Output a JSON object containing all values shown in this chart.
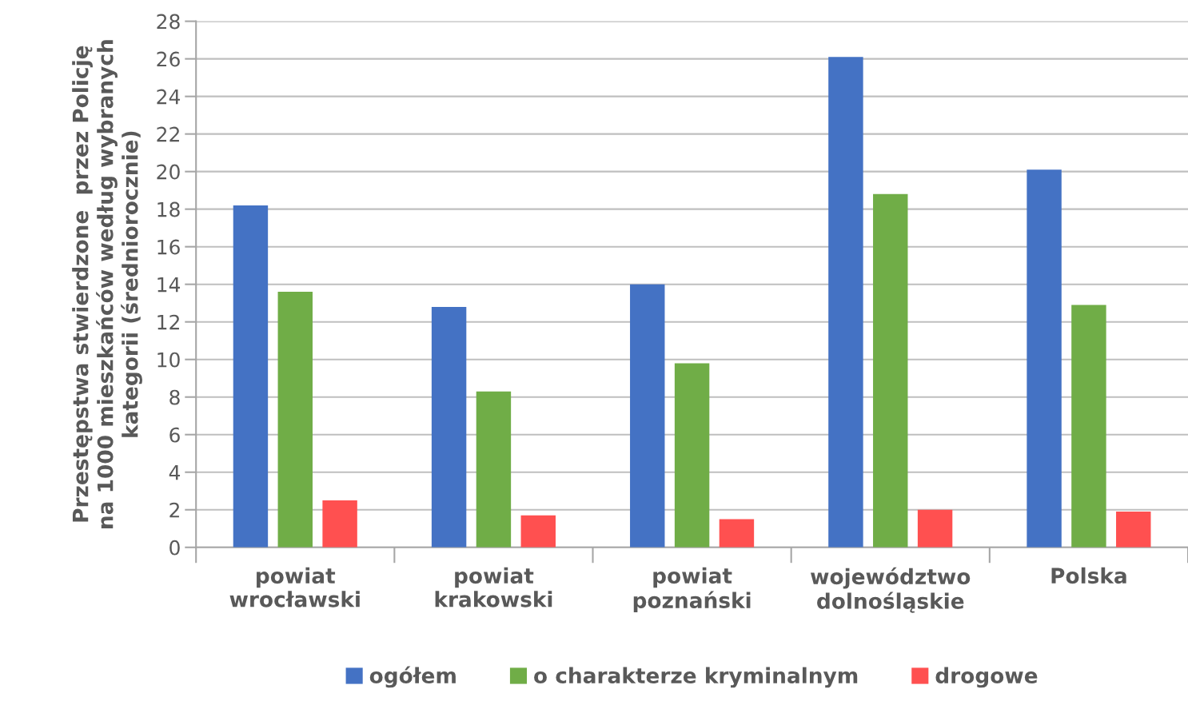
{
  "chart_data": {
    "type": "bar",
    "ylabel": "Przestępstwa stwierdzone  przez Policję\nna 1000 mieszkańców według wybranych\nkategorii (średniorocznie)",
    "categories": [
      "powiat\nwrocławski",
      "powiat\nkrakowski",
      "powiat\npoznański",
      "województwo\ndolnośląskie",
      "Polska"
    ],
    "series": [
      {
        "name": "ogółem",
        "color": "#4472c4",
        "values": [
          18.2,
          12.8,
          14.0,
          26.1,
          20.1
        ]
      },
      {
        "name": "o charakterze kryminalnym",
        "color": "#70ad47",
        "values": [
          13.6,
          8.3,
          9.8,
          18.8,
          12.9
        ]
      },
      {
        "name": "drogowe",
        "color": "#ff5050",
        "values": [
          2.5,
          1.7,
          1.5,
          2.0,
          1.9
        ]
      }
    ],
    "ylim": [
      0,
      28
    ],
    "yticks": [
      0,
      2,
      4,
      6,
      8,
      10,
      12,
      14,
      16,
      18,
      20,
      22,
      24,
      26,
      28
    ],
    "grid": "y",
    "legend": "bottom"
  }
}
